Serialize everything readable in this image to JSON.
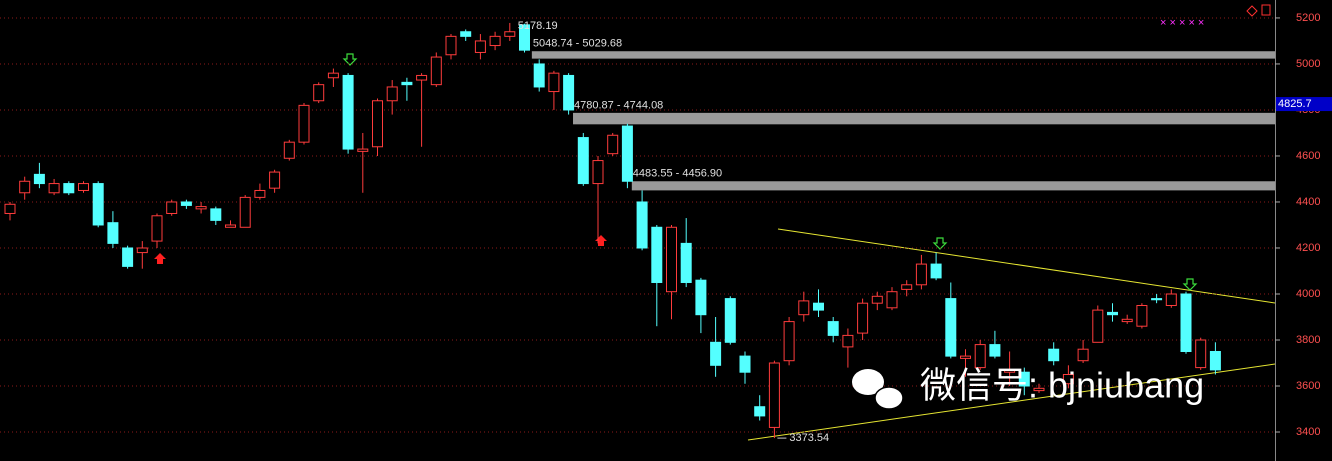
{
  "chart_data": {
    "type": "candlestick",
    "open": [
      4350,
      4440,
      4520,
      4440,
      4480,
      4450,
      4480,
      4310,
      4200,
      4180,
      4230,
      4350,
      4400,
      4370,
      4370,
      4290,
      4290,
      4420,
      4460,
      4590,
      4660,
      4840,
      4940,
      4950,
      4620,
      4640,
      4840,
      4920,
      4930,
      4910,
      5040,
      5140,
      5050,
      5080,
      5120,
      5170,
      5000,
      4880,
      4950,
      4680,
      4480,
      4610,
      4730,
      4400,
      4290,
      4010,
      4220,
      4060,
      3790,
      3980,
      3730,
      3510,
      3420,
      3710,
      3910,
      3960,
      3880,
      3770,
      3830,
      3960,
      3940,
      4020,
      4040,
      4130,
      3980,
      3720,
      3680,
      3780,
      3660,
      3660,
      3580,
      3760,
      3610,
      3710,
      3790,
      3920,
      3880,
      3860,
      3980,
      3950,
      4000,
      3680,
      3750
    ],
    "high": [
      4400,
      4510,
      4570,
      4500,
      4490,
      4490,
      4490,
      4360,
      4210,
      4230,
      4350,
      4410,
      4410,
      4400,
      4380,
      4320,
      4430,
      4480,
      4540,
      4670,
      4830,
      4920,
      4980,
      4960,
      4700,
      4850,
      4930,
      4940,
      4960,
      5050,
      5130,
      5150,
      5130,
      5140,
      5178.19,
      5175,
      5020,
      4970,
      4960,
      4700,
      4600,
      4700,
      4740,
      4450,
      4300,
      4300,
      4330,
      4070,
      3900,
      3990,
      3750,
      3560,
      3710,
      3900,
      4010,
      4020,
      3900,
      3850,
      3980,
      4010,
      4030,
      4060,
      4170,
      4180,
      4050,
      3760,
      3800,
      3840,
      3750,
      3680,
      3610,
      3790,
      3690,
      3800,
      3950,
      3960,
      3910,
      3960,
      4000,
      4020,
      4010,
      3810,
      3790
    ],
    "low": [
      4320,
      4410,
      4460,
      4430,
      4430,
      4440,
      4290,
      4200,
      4110,
      4110,
      4200,
      4340,
      4370,
      4350,
      4300,
      4290,
      4290,
      4410,
      4440,
      4580,
      4650,
      4830,
      4900,
      4610,
      4440,
      4600,
      4780,
      4840,
      4640,
      4900,
      5020,
      5100,
      5020,
      5060,
      5100,
      5050,
      4880,
      4800,
      4780,
      4470,
      4220,
      4600,
      4460,
      4190,
      3860,
      3890,
      4030,
      3830,
      3640,
      3780,
      3610,
      3450,
      3373.54,
      3690,
      3880,
      3900,
      3790,
      3680,
      3800,
      3930,
      3930,
      3990,
      4020,
      4060,
      3720,
      3640,
      3670,
      3720,
      3600,
      3560,
      3570,
      3690,
      3590,
      3700,
      3790,
      3880,
      3870,
      3850,
      3960,
      3940,
      3740,
      3670,
      3650
    ],
    "close": [
      4390,
      4490,
      4480,
      4480,
      4440,
      4480,
      4300,
      4220,
      4120,
      4200,
      4340,
      4400,
      4385,
      4380,
      4320,
      4300,
      4420,
      4450,
      4530,
      4660,
      4820,
      4910,
      4960,
      4630,
      4630,
      4840,
      4900,
      4910,
      4950,
      5030,
      5120,
      5120,
      5100,
      5120,
      5140,
      5060,
      4900,
      4960,
      4800,
      4480,
      4580,
      4690,
      4490,
      4200,
      4050,
      4290,
      4050,
      3910,
      3690,
      3790,
      3660,
      3470,
      3700,
      3880,
      3970,
      3930,
      3820,
      3820,
      3960,
      3990,
      4010,
      4040,
      4130,
      4070,
      3730,
      3730,
      3780,
      3730,
      3670,
      3600,
      3590,
      3710,
      3650,
      3760,
      3930,
      3910,
      3890,
      3950,
      3975,
      4000,
      3750,
      3800,
      3670
    ],
    "up_color": "#ff3c3c",
    "down_color": "#54ffff",
    "ylim": [
      3274,
      5278
    ],
    "yticks": [
      3400,
      3600,
      3800,
      4000,
      4200,
      4400,
      4600,
      4800,
      5000,
      5200
    ],
    "grid": true,
    "zones": [
      {
        "label": "5048.74 - 5029.68",
        "high": 5048.74,
        "low": 5029.68
      },
      {
        "label": "4780.87 - 4744.08",
        "high": 4780.87,
        "low": 4744.08
      },
      {
        "label": "4483.55 - 4456.90",
        "high": 4483.55,
        "low": 4456.9
      }
    ],
    "last_price": 4825.7,
    "watermark": "微信号: bjniubang"
  }
}
